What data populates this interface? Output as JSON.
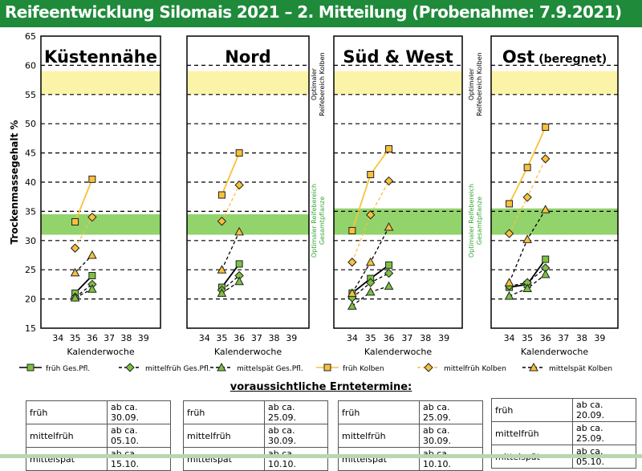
{
  "header": {
    "title": "Reifeentwicklung Silomais 2021 – 2. Mitteilung (Probenahme: 7.9.2021)",
    "bg_color": "#1e8a3a"
  },
  "ylabel": "Trockenmassegehalt %",
  "xlabel": "Kalenderwoche",
  "band_labels": {
    "kolben": [
      "Optimaler",
      "Reifebereich Kolben"
    ],
    "gesamt": [
      "Optimaler Reifebereich",
      "Gesamtpflanze"
    ]
  },
  "colors": {
    "green_band": "#92d36c",
    "yellow_band": "#fbf3a8",
    "orange": "#f9c13a",
    "green_marker": "#7cc242",
    "panel_bg": "#e6e6e6"
  },
  "legend": [
    {
      "label": "früh Ges.Pfl.",
      "style": "solid",
      "color": "#000000",
      "marker": "square",
      "fill": "#7cc242"
    },
    {
      "label": "mittelfrüh Ges.Pfl.",
      "style": "dashed",
      "color": "#000000",
      "marker": "diamond",
      "fill": "#7cc242"
    },
    {
      "label": "mittelspät Ges.Pfl.",
      "style": "dashed",
      "color": "#000000",
      "marker": "triangle",
      "fill": "#7cc242"
    },
    {
      "label": "früh Kolben",
      "style": "solid",
      "color": "#f9c13a",
      "marker": "square",
      "fill": "#f9c13a"
    },
    {
      "label": "mittelfrüh Kolben",
      "style": "dashed",
      "color": "#f9c13a",
      "marker": "diamond",
      "fill": "#f9c13a"
    },
    {
      "label": "mittelspät Kolben",
      "style": "dashed",
      "color": "#000000",
      "marker": "triangle",
      "fill": "#f9c13a"
    }
  ],
  "chart_data": [
    {
      "type": "line",
      "title": "Küstennähe",
      "x": [
        34,
        35,
        36,
        37,
        38,
        39
      ],
      "ylim": [
        15,
        65
      ],
      "yticks": [
        15,
        20,
        25,
        30,
        35,
        40,
        45,
        50,
        55,
        60,
        65
      ],
      "bands": {
        "gesamt": [
          31,
          34.5
        ],
        "kolben": [
          55,
          59
        ]
      },
      "series": [
        {
          "name": "früh Ges.Pfl.",
          "x": [
            35,
            36
          ],
          "y": [
            21,
            24
          ]
        },
        {
          "name": "mittelfrüh Ges.Pfl.",
          "x": [
            35,
            36
          ],
          "y": [
            20.3,
            22.5
          ]
        },
        {
          "name": "mittelspät Ges.Pfl.",
          "x": [
            35,
            36
          ],
          "y": [
            20.2,
            21.7
          ]
        },
        {
          "name": "früh Kolben",
          "x": [
            35,
            36
          ],
          "y": [
            33.2,
            40.5
          ]
        },
        {
          "name": "mittelfrüh Kolben",
          "x": [
            35,
            36
          ],
          "y": [
            28.7,
            34
          ]
        },
        {
          "name": "mittelspät Kolben",
          "x": [
            35,
            36
          ],
          "y": [
            24.5,
            27.5
          ]
        }
      ]
    },
    {
      "type": "line",
      "title": "Nord",
      "x": [
        34,
        35,
        36,
        37,
        38,
        39
      ],
      "ylim": [
        15,
        65
      ],
      "bands": {
        "gesamt": [
          31,
          34.5
        ],
        "kolben": [
          55,
          59
        ]
      },
      "series": [
        {
          "name": "früh Ges.Pfl.",
          "x": [
            35,
            36
          ],
          "y": [
            22,
            26
          ]
        },
        {
          "name": "mittelfrüh Ges.Pfl.",
          "x": [
            35,
            36
          ],
          "y": [
            21.5,
            24
          ]
        },
        {
          "name": "mittelspät Ges.Pfl.",
          "x": [
            35,
            36
          ],
          "y": [
            21,
            23
          ]
        },
        {
          "name": "früh Kolben",
          "x": [
            35,
            36
          ],
          "y": [
            37.8,
            45
          ]
        },
        {
          "name": "mittelfrüh Kolben",
          "x": [
            35,
            36
          ],
          "y": [
            33.3,
            39.5
          ]
        },
        {
          "name": "mittelspät Kolben",
          "x": [
            35,
            36
          ],
          "y": [
            25,
            31.5
          ]
        }
      ]
    },
    {
      "type": "line",
      "title": "Süd & West",
      "x": [
        34,
        35,
        36,
        37,
        38,
        39
      ],
      "ylim": [
        15,
        65
      ],
      "bands": {
        "gesamt": [
          31,
          35.5
        ],
        "kolben": [
          55,
          59
        ]
      },
      "series": [
        {
          "name": "früh Ges.Pfl.",
          "x": [
            34,
            35,
            36
          ],
          "y": [
            21,
            23.5,
            25.8
          ]
        },
        {
          "name": "mittelfrüh Ges.Pfl.",
          "x": [
            34,
            35,
            36
          ],
          "y": [
            20.2,
            22.8,
            24.4
          ]
        },
        {
          "name": "mittelspät Ges.Pfl.",
          "x": [
            34,
            35,
            36
          ],
          "y": [
            18.8,
            21.2,
            22.2
          ]
        },
        {
          "name": "früh Kolben",
          "x": [
            34,
            35,
            36
          ],
          "y": [
            31.7,
            41.3,
            45.7
          ]
        },
        {
          "name": "mittelfrüh Kolben",
          "x": [
            34,
            35,
            36
          ],
          "y": [
            26.3,
            34.4,
            40.2
          ]
        },
        {
          "name": "mittelspät Kolben",
          "x": [
            34,
            35,
            36
          ],
          "y": [
            21,
            26.3,
            32.3
          ]
        }
      ]
    },
    {
      "type": "line",
      "title": "Ost",
      "title_suffix": "(beregnet)",
      "x": [
        34,
        35,
        36,
        37,
        38,
        39
      ],
      "ylim": [
        15,
        65
      ],
      "bands": {
        "gesamt": [
          31,
          35.5
        ],
        "kolben": [
          55,
          59
        ]
      },
      "series": [
        {
          "name": "früh Ges.Pfl.",
          "x": [
            34,
            35,
            36
          ],
          "y": [
            22,
            22.5,
            26.8
          ]
        },
        {
          "name": "mittelfrüh Ges.Pfl.",
          "x": [
            34,
            35,
            36
          ],
          "y": [
            22.2,
            22.8,
            25.3
          ]
        },
        {
          "name": "mittelspät Ges.Pfl.",
          "x": [
            34,
            35,
            36
          ],
          "y": [
            20.5,
            21.8,
            24.2
          ]
        },
        {
          "name": "früh Kolben",
          "x": [
            34,
            35,
            36
          ],
          "y": [
            36.3,
            42.5,
            49.4
          ]
        },
        {
          "name": "mittelfrüh Kolben",
          "x": [
            34,
            35,
            36
          ],
          "y": [
            31.2,
            37.4,
            44
          ]
        },
        {
          "name": "mittelspät Kolben",
          "x": [
            34,
            35,
            36
          ],
          "y": [
            22.8,
            30.2,
            35.3
          ]
        }
      ]
    }
  ],
  "forecast": {
    "title": "voraussichtliche Erntetermine:",
    "tables": [
      {
        "rows": [
          [
            "früh",
            "ab ca. 30.09."
          ],
          [
            "mittelfrüh",
            "ab ca. 05.10."
          ],
          [
            "mittelspät",
            "ab ca. 15.10."
          ]
        ]
      },
      {
        "rows": [
          [
            "früh",
            "ab ca. 25.09."
          ],
          [
            "mittelfrüh",
            "ab ca. 30.09."
          ],
          [
            "mittelspät",
            "ab ca. 10.10."
          ]
        ]
      },
      {
        "rows": [
          [
            "früh",
            "ab ca. 25.09."
          ],
          [
            "mittelfrüh",
            "ab ca. 30.09."
          ],
          [
            "mittelspät",
            "ab ca. 10.10."
          ]
        ]
      },
      {
        "rows": [
          [
            "früh",
            "ab ca. 20.09."
          ],
          [
            "mittelfrüh",
            "ab ca. 25.09."
          ],
          [
            "mittelspät",
            "ab ca. 05.10."
          ]
        ]
      }
    ]
  }
}
